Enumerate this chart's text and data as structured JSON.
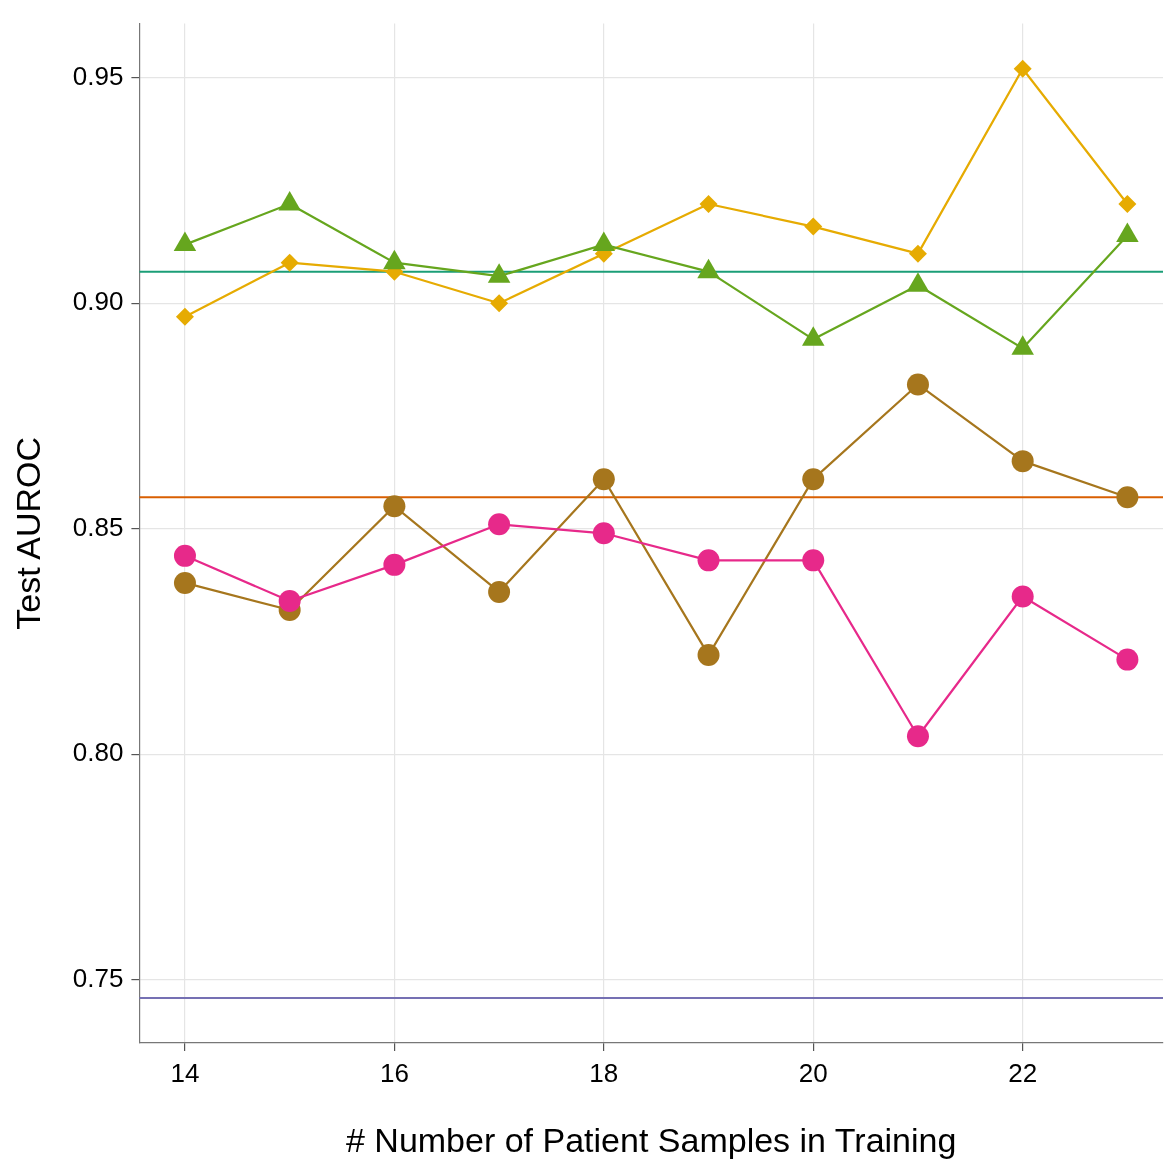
{
  "chart_data": {
    "type": "line",
    "xlabel": "# Number of Patient Samples in Training",
    "ylabel": "Test AUROC",
    "x": [
      14,
      15,
      16,
      17,
      18,
      19,
      20,
      21,
      22,
      23
    ],
    "xlim": [
      13.565,
      23.34
    ],
    "xticks": [
      14,
      16,
      18,
      20,
      22
    ],
    "ylim": [
      0.736,
      0.962
    ],
    "yticks": [
      0.75,
      {
        "value": 0.8,
        "label": "0.80"
      },
      0.85,
      {
        "value": 0.9,
        "label": "0.90"
      },
      0.95
    ],
    "grid": true,
    "legend": false,
    "line_style": "solid",
    "series": [
      {
        "color": "#e6ab02",
        "marker": "diamond",
        "values": [
          0.897,
          0.909,
          0.907,
          0.9,
          0.911,
          0.922,
          0.917,
          0.911,
          0.952,
          0.922
        ]
      },
      {
        "color": "#66a61e",
        "marker": "triangle",
        "values": [
          0.913,
          0.922,
          0.909,
          0.906,
          0.913,
          0.907,
          0.892,
          0.904,
          0.89,
          0.915
        ]
      },
      {
        "color": "#a6761d",
        "marker": "circle",
        "values": [
          0.838,
          0.832,
          0.855,
          0.836,
          0.861,
          0.822,
          0.861,
          0.882,
          0.865,
          0.857
        ]
      },
      {
        "color": "#e7298a",
        "marker": "circle",
        "values": [
          0.844,
          0.834,
          0.842,
          0.851,
          0.849,
          0.843,
          0.843,
          0.804,
          0.835,
          0.821
        ]
      }
    ],
    "ref_lines": [
      {
        "axis": "y",
        "value": 0.907,
        "color": "#1b9e77"
      },
      {
        "axis": "y",
        "value": 0.857,
        "color": "#d95f02"
      },
      {
        "axis": "y",
        "value": 0.746,
        "color": "#7570b3"
      }
    ]
  }
}
